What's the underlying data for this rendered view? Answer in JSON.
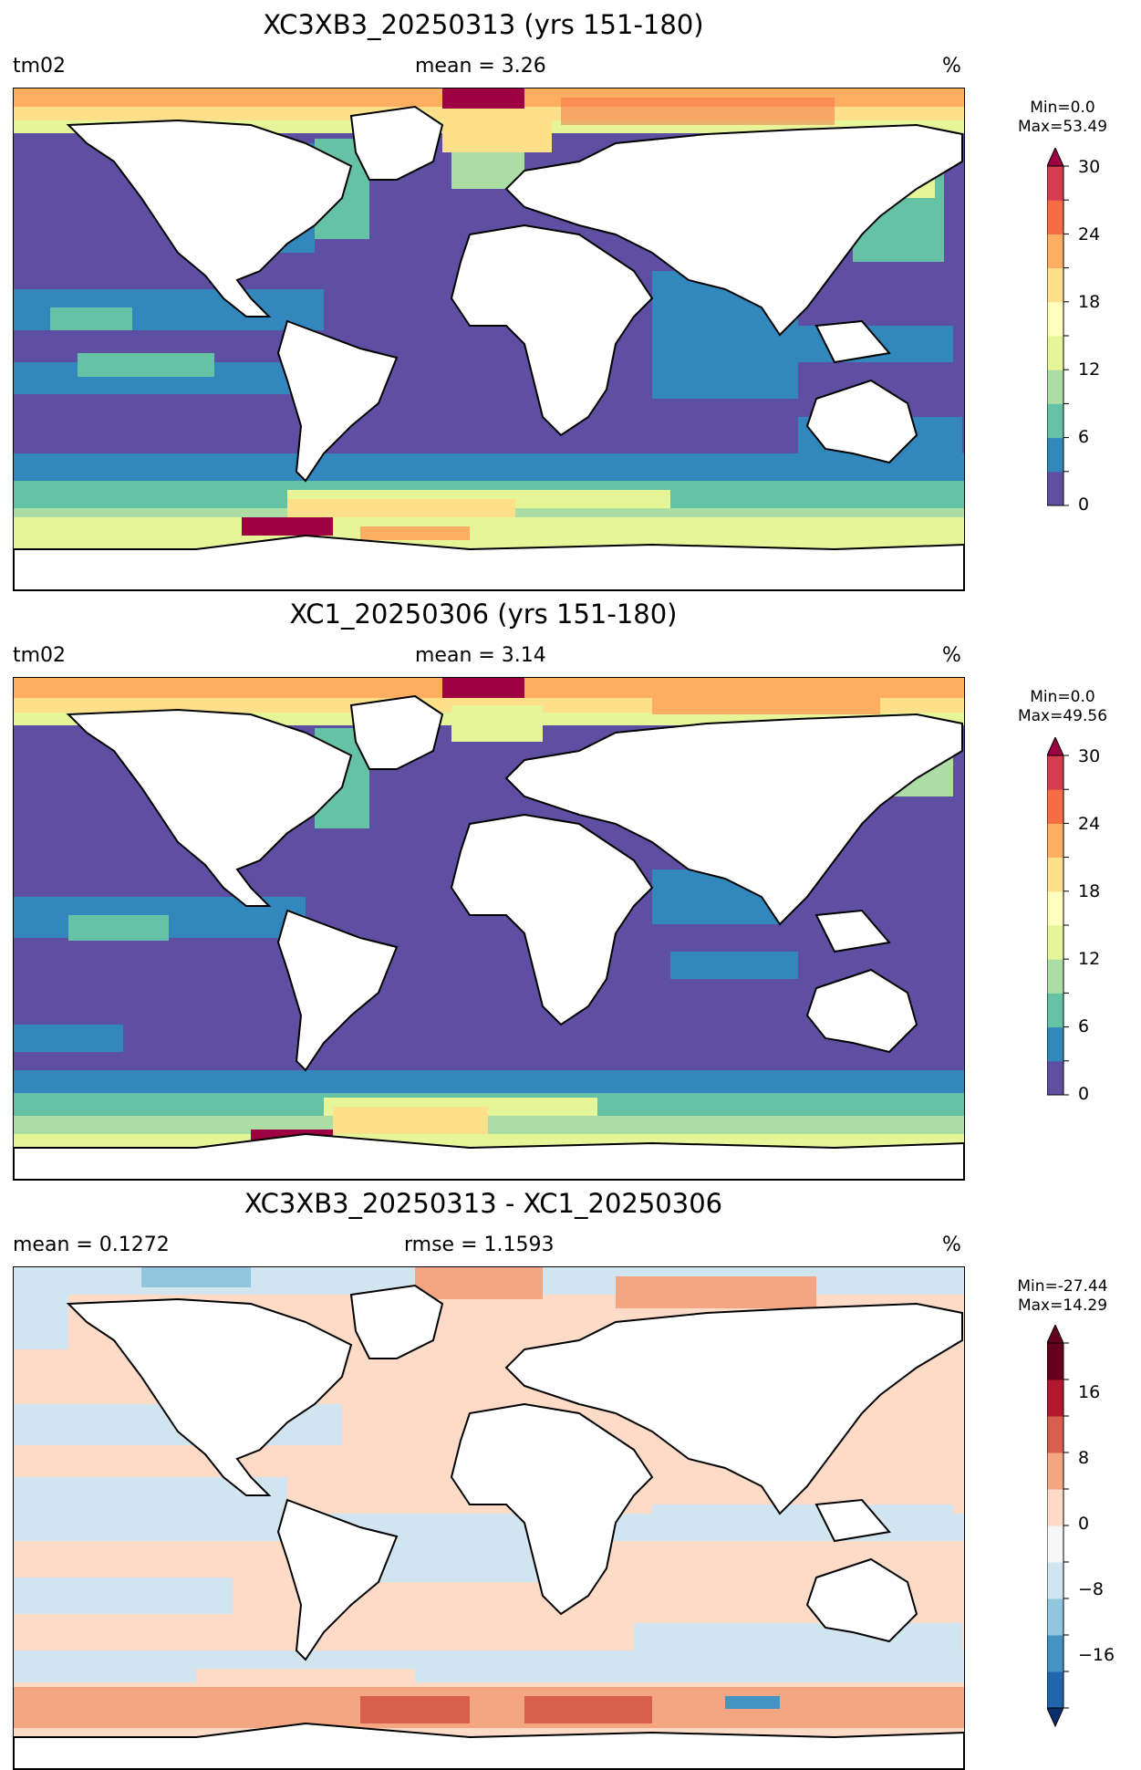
{
  "panels": [
    {
      "title": "XC3XB3_20250313 (yrs 151-180)",
      "left_label": "tm02",
      "center_label": "mean = 3.26",
      "right_label": "%",
      "stats_min": "Min=0.0",
      "stats_max": "Max=53.49",
      "colorbar_ticks": [
        "30",
        "24",
        "18",
        "12",
        "6",
        "0"
      ]
    },
    {
      "title": "XC1_20250306 (yrs 151-180)",
      "left_label": "tm02",
      "center_label": "mean = 3.14",
      "right_label": "%",
      "stats_min": "Min=0.0",
      "stats_max": "Max=49.56",
      "colorbar_ticks": [
        "30",
        "24",
        "18",
        "12",
        "6",
        "0"
      ]
    },
    {
      "title": "XC3XB3_20250313 - XC1_20250306",
      "left_label": "mean = 0.1272",
      "center_label": "rmse = 1.1593",
      "right_label": "%",
      "stats_min": "Min=-27.44",
      "stats_max": "Max=14.29",
      "colorbar_ticks": [
        "16",
        "8",
        "0",
        "−8",
        "−16"
      ]
    }
  ],
  "colors": {
    "spectral": [
      "#5e4fa2",
      "#3288bd",
      "#66c2a5",
      "#abdda4",
      "#e6f598",
      "#ffffbf",
      "#fee08b",
      "#fdae61",
      "#f46d43",
      "#d53e4f",
      "#9e0142"
    ],
    "rdbu": [
      "#08306b",
      "#2166ac",
      "#4393c3",
      "#92c5de",
      "#d1e5f0",
      "#f7f7f7",
      "#fddbc7",
      "#f4a582",
      "#d6604d",
      "#b2182b",
      "#67001f"
    ]
  }
}
